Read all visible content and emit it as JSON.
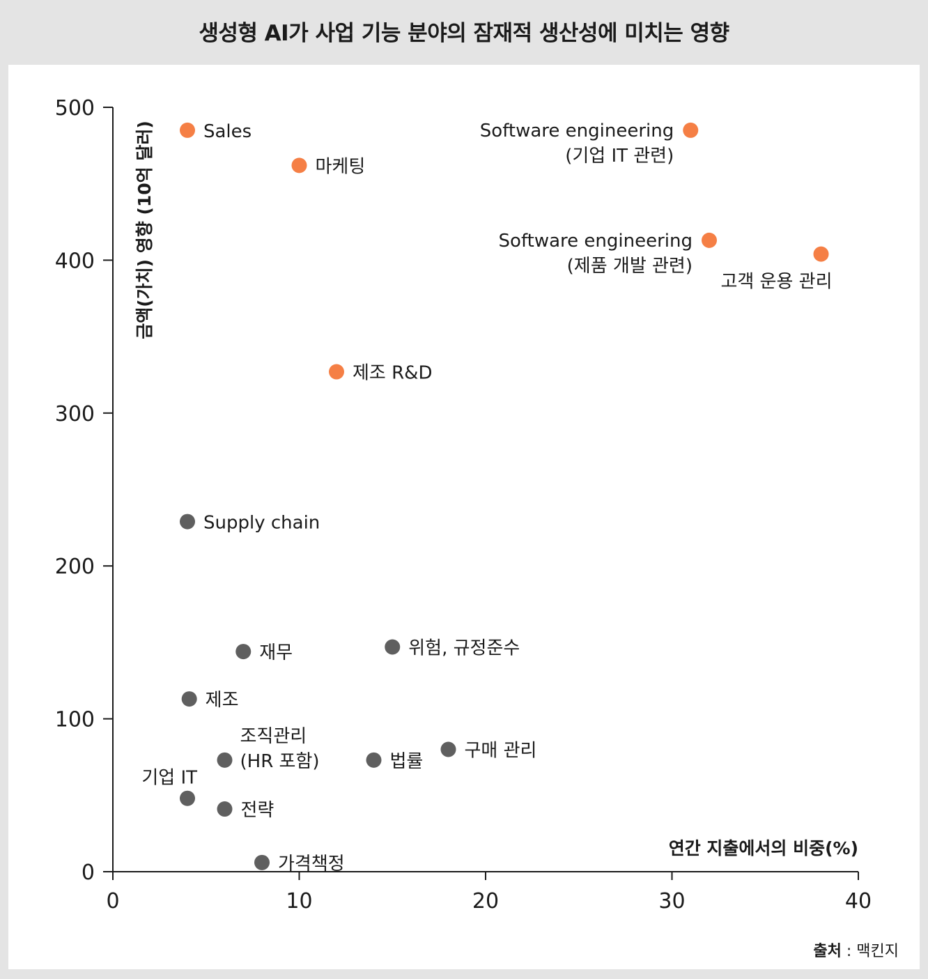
{
  "title": "생성형  AI가 사업 기능 분야의 잠재적 생산성에 미치는 영향",
  "source": {
    "prefix": "출처",
    "separator": " : ",
    "name": "맥킨지"
  },
  "colors": {
    "high": "#f57f45",
    "low": "#5f5f5f",
    "background": "#e4e4e4",
    "panel": "#ffffff",
    "axis": "#1a1a1a"
  },
  "chart_data": {
    "type": "scatter",
    "xlabel": "연간 지출에서의 비중(%)",
    "ylabel": "금액(가치) 영향 (10억 달러)",
    "xlim": [
      0,
      40
    ],
    "ylim": [
      0,
      500
    ],
    "xticks": [
      0,
      10,
      20,
      30,
      40
    ],
    "yticks": [
      0,
      100,
      200,
      300,
      400,
      500
    ],
    "grid": false,
    "points": [
      {
        "label": [
          "Sales"
        ],
        "x": 4,
        "y": 485,
        "group": "high",
        "anchor": "right"
      },
      {
        "label": [
          "마케팅"
        ],
        "x": 10,
        "y": 462,
        "group": "high",
        "anchor": "right"
      },
      {
        "label": [
          "Software engineering",
          "(기업 IT 관련)"
        ],
        "x": 31,
        "y": 485,
        "group": "high",
        "anchor": "left"
      },
      {
        "label": [
          "Software engineering",
          "(제품 개발 관련)"
        ],
        "x": 32,
        "y": 413,
        "group": "high",
        "anchor": "left"
      },
      {
        "label": [
          "고객 운용 관리"
        ],
        "x": 38,
        "y": 404,
        "group": "high",
        "anchor": "below-left"
      },
      {
        "label": [
          "제조 R&D"
        ],
        "x": 12,
        "y": 327,
        "group": "high",
        "anchor": "right"
      },
      {
        "label": [
          "Supply chain"
        ],
        "x": 4,
        "y": 229,
        "group": "low",
        "anchor": "right"
      },
      {
        "label": [
          "재무"
        ],
        "x": 7,
        "y": 144,
        "group": "low",
        "anchor": "right"
      },
      {
        "label": [
          "위험, 규정준수"
        ],
        "x": 15,
        "y": 147,
        "group": "low",
        "anchor": "right"
      },
      {
        "label": [
          "제조"
        ],
        "x": 4.1,
        "y": 113,
        "group": "low",
        "anchor": "right"
      },
      {
        "label": [
          "조직관리",
          "(HR 포함)"
        ],
        "x": 6,
        "y": 73,
        "group": "low",
        "anchor": "right-up"
      },
      {
        "label": [
          "법률"
        ],
        "x": 14,
        "y": 73,
        "group": "low",
        "anchor": "right"
      },
      {
        "label": [
          "구매 관리"
        ],
        "x": 18,
        "y": 80,
        "group": "low",
        "anchor": "right"
      },
      {
        "label": [
          "기업 IT"
        ],
        "x": 4,
        "y": 48,
        "group": "low",
        "anchor": "above-left"
      },
      {
        "label": [
          "전략"
        ],
        "x": 6,
        "y": 41,
        "group": "low",
        "anchor": "right"
      },
      {
        "label": [
          "가격책정"
        ],
        "x": 8,
        "y": 6,
        "group": "low",
        "anchor": "right"
      }
    ]
  }
}
